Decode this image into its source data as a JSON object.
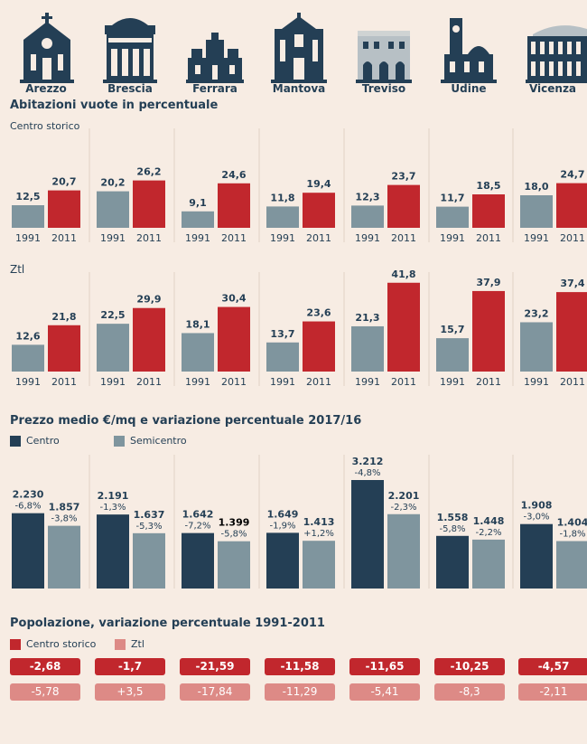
{
  "cities": [
    "Arezzo",
    "Brescia",
    "Ferrara",
    "Mantova",
    "Treviso",
    "Udine",
    "Vicenza"
  ],
  "section1": {
    "title": "Abitazioni vuote in percentuale",
    "sub_centro": "Centro storico",
    "sub_ztl": "Ztl"
  },
  "section2": {
    "title": "Prezzo medio €/mq e variazione percentuale 2017/16",
    "legend_centro": "Centro",
    "legend_semicentro": "Semicentro"
  },
  "section3": {
    "title": "Popolazione, variazione percentuale 1991-2011",
    "legend_centro": "Centro storico",
    "legend_ztl": "Ztl",
    "centro_values": [
      "-2,68",
      "-1,7",
      "-21,59",
      "-11,58",
      "-11,65",
      "-10,25",
      "-4,57"
    ],
    "ztl_values": [
      "-5,78",
      "+3,5",
      "-17,84",
      "-11,29",
      "-5,41",
      "-8,3",
      "-2,11"
    ]
  },
  "colors": {
    "navy": "#243f55",
    "gray": "#7f959e",
    "red": "#c1272d",
    "pink": "#dd8a86",
    "background": "#f7ece3"
  },
  "chart_data": [
    {
      "type": "bar",
      "title": "Abitazioni vuote in percentuale",
      "subtitle": "Centro storico",
      "categories": [
        "Arezzo",
        "Brescia",
        "Ferrara",
        "Mantova",
        "Treviso",
        "Udine",
        "Vicenza"
      ],
      "series": [
        {
          "name": "1991",
          "values": [
            12.5,
            20.2,
            9.1,
            11.8,
            12.3,
            11.7,
            18.0
          ],
          "labels": [
            "12,5",
            "20,2",
            "9,1",
            "11,8",
            "12,3",
            "11,7",
            "18,0"
          ]
        },
        {
          "name": "2011",
          "values": [
            20.7,
            26.2,
            24.6,
            19.4,
            23.7,
            18.5,
            24.7
          ],
          "labels": [
            "20,7",
            "26,2",
            "24,6",
            "19,4",
            "23,7",
            "18,5",
            "24,7"
          ]
        }
      ]
    },
    {
      "type": "bar",
      "subtitle": "Ztl",
      "categories": [
        "Arezzo",
        "Brescia",
        "Ferrara",
        "Mantova",
        "Treviso",
        "Udine",
        "Vicenza"
      ],
      "series": [
        {
          "name": "1991",
          "values": [
            12.6,
            22.5,
            18.1,
            13.7,
            21.3,
            15.7,
            23.2
          ],
          "labels": [
            "12,6",
            "22,5",
            "18,1",
            "13,7",
            "21,3",
            "15,7",
            "23,2"
          ]
        },
        {
          "name": "2011",
          "values": [
            21.8,
            29.9,
            30.4,
            23.6,
            41.8,
            37.9,
            37.4
          ],
          "labels": [
            "21,8",
            "29,9",
            "30,4",
            "23,6",
            "41,8",
            "37,9",
            "37,4"
          ]
        }
      ]
    },
    {
      "type": "bar",
      "title": "Prezzo medio €/mq e variazione percentuale 2017/16",
      "categories": [
        "Arezzo",
        "Brescia",
        "Ferrara",
        "Mantova",
        "Treviso",
        "Udine",
        "Vicenza"
      ],
      "series": [
        {
          "name": "Centro",
          "values": [
            2230,
            2191,
            1642,
            1649,
            3212,
            1558,
            1908
          ],
          "labels": [
            "2.230",
            "2.191",
            "1.642",
            "1.649",
            "3.212",
            "1.558",
            "1.908"
          ],
          "pct": [
            "-6,8%",
            "-1,3%",
            "-7,2%",
            "-1,9%",
            "-4,8%",
            "-5,8%",
            "-3,0%"
          ]
        },
        {
          "name": "Semicentro",
          "values": [
            1857,
            1637,
            1399,
            1413,
            2201,
            1448,
            1404
          ],
          "labels": [
            "1.857",
            "1.637",
            "1.399",
            "1.413",
            "2.201",
            "1.448",
            "1.404"
          ],
          "pct": [
            "-3,8%",
            "-5,3%",
            "-5,8%",
            "+1,2%",
            "-2,3%",
            "-2,2%",
            "-1,8%"
          ]
        }
      ]
    }
  ]
}
